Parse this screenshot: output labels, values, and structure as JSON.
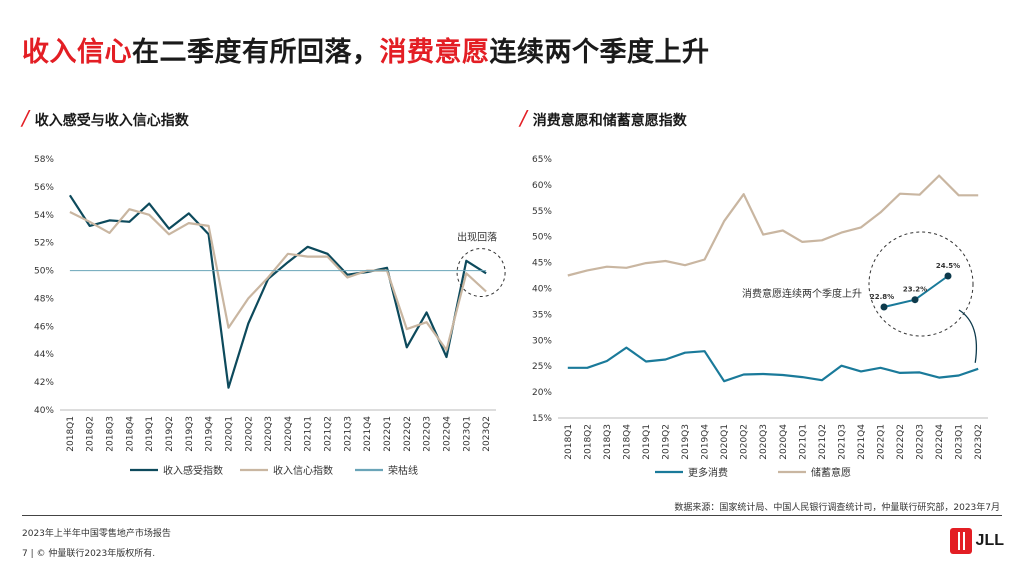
{
  "header": {
    "title_part1": "收入信心",
    "title_part2": "在二季度有所回落，",
    "title_part3": "消费意愿",
    "title_part4": "连续两个季度上升"
  },
  "left_panel": {
    "slash": "/",
    "title": "收入感受与收入信心指数"
  },
  "right_panel": {
    "slash": "/",
    "title": "消费意愿和储蓄意愿指数"
  },
  "chart_data": [
    {
      "type": "line",
      "x": [
        "2018Q1",
        "2018Q2",
        "2018Q3",
        "2018Q4",
        "2019Q1",
        "2019Q2",
        "2019Q3",
        "2019Q4",
        "2020Q1",
        "2020Q2",
        "2020Q3",
        "2020Q4",
        "2021Q1",
        "2021Q2",
        "2021Q3",
        "2021Q4",
        "2022Q1",
        "2022Q2",
        "2022Q3",
        "2022Q4",
        "2023Q1",
        "2023Q2"
      ],
      "ylim": [
        40,
        58
      ],
      "yticks": [
        "40%",
        "42%",
        "44%",
        "46%",
        "48%",
        "50%",
        "52%",
        "54%",
        "56%",
        "58%"
      ],
      "series": [
        {
          "name": "收入感受指数",
          "color": "#0d4a5c",
          "values": [
            55.4,
            53.2,
            53.6,
            53.5,
            54.8,
            53.0,
            54.1,
            52.6,
            41.6,
            46.2,
            49.4,
            50.6,
            51.7,
            51.2,
            49.7,
            49.9,
            50.2,
            44.5,
            47.0,
            43.8,
            50.7,
            49.8
          ]
        },
        {
          "name": "收入信心指数",
          "color": "#c9b6a1",
          "values": [
            54.2,
            53.5,
            52.7,
            54.4,
            54.0,
            52.6,
            53.4,
            53.2,
            45.9,
            48.0,
            49.5,
            51.2,
            51.0,
            51.0,
            49.5,
            50.0,
            50.0,
            45.8,
            46.3,
            44.3,
            49.8,
            48.5
          ]
        },
        {
          "name": "荣枯线",
          "color": "#6aa4b8",
          "values": [
            50,
            50,
            50,
            50,
            50,
            50,
            50,
            50,
            50,
            50,
            50,
            50,
            50,
            50,
            50,
            50,
            50,
            50,
            50,
            50,
            50,
            50
          ]
        }
      ],
      "annotation": "出现回落"
    },
    {
      "type": "line",
      "x": [
        "2018Q1",
        "2018Q2",
        "2018Q3",
        "2018Q4",
        "2019Q1",
        "2019Q2",
        "2019Q3",
        "2019Q4",
        "2020Q1",
        "2020Q2",
        "2020Q3",
        "2020Q4",
        "2021Q1",
        "2021Q2",
        "2021Q3",
        "2021Q4",
        "2022Q1",
        "2022Q2",
        "2022Q3",
        "2022Q4",
        "2023Q1",
        "2023Q2"
      ],
      "ylim": [
        15,
        65
      ],
      "yticks": [
        "15%",
        "20%",
        "25%",
        "30%",
        "35%",
        "40%",
        "45%",
        "50%",
        "55%",
        "60%",
        "65%"
      ],
      "series": [
        {
          "name": "更多消费",
          "color": "#1a7a9a",
          "values": [
            24.7,
            24.7,
            26.0,
            28.6,
            25.9,
            26.3,
            27.6,
            27.9,
            22.1,
            23.4,
            23.5,
            23.3,
            22.9,
            22.3,
            25.1,
            24.0,
            24.7,
            23.7,
            23.8,
            22.8,
            23.2,
            24.5
          ]
        },
        {
          "name": "储蓄意愿",
          "color": "#c9b6a1",
          "values": [
            42.5,
            43.5,
            44.2,
            44.0,
            44.9,
            45.3,
            44.5,
            45.6,
            53.0,
            58.2,
            50.4,
            51.2,
            49.0,
            49.3,
            50.8,
            51.8,
            54.7,
            58.3,
            58.1,
            61.8,
            58.0,
            58.0
          ]
        }
      ],
      "annotation": "消费意愿连续两个季度上升",
      "callout_labels": [
        "22.8%",
        "23.2%",
        "24.5%"
      ],
      "callout_values": [
        22.8,
        23.2,
        24.5
      ]
    }
  ],
  "source": "数据来源：国家统计局、中国人民银行调查统计司，仲量联行研究部，2023年7月",
  "footer": {
    "report": "2023年上半年中国零售地产市场报告",
    "copyright": "7 | © 仲量联行2023年版权所有."
  },
  "logo": {
    "text": "JLL",
    "color": "#e31e24"
  }
}
